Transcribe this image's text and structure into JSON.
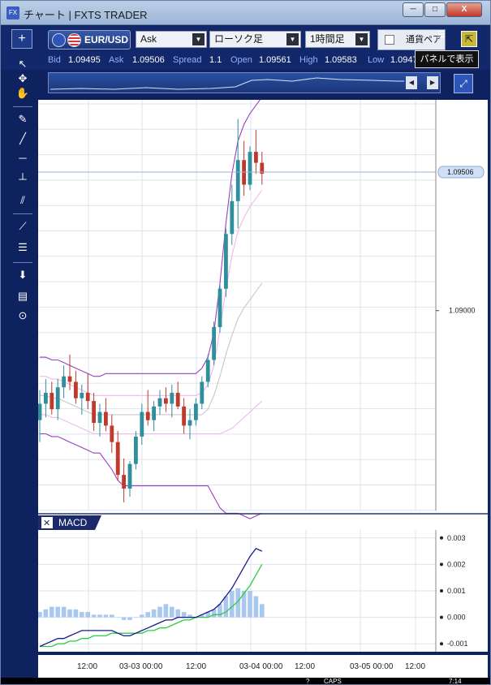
{
  "window": {
    "app_icon": "FX",
    "title": "チャート | FXTS TRADER",
    "min_symbol": "─",
    "max_symbol": "□",
    "close_symbol": "X"
  },
  "toolbar": {
    "add_label": "+",
    "pair": "EUR/USD",
    "price_type": "Ask",
    "chart_type": "ローソク足",
    "timeframe": "1時間足",
    "currency_panel": "通貨ペア",
    "list_icon": "☰",
    "panel_icon": "⇱",
    "tooltip": "パネルで表示",
    "dropdown_arrow": "▼"
  },
  "price_bar": {
    "bid_label": "Bid",
    "bid": "1.09495",
    "ask_label": "Ask",
    "ask": "1.09506",
    "spread_label": "Spread",
    "spread": "1.1",
    "open_label": "Open",
    "open": "1.09561",
    "high_label": "High",
    "high": "1.09583",
    "low_label": "Low",
    "low": "1.0947"
  },
  "navigator": {
    "left_arrow": "◀",
    "right_arrow": "▶",
    "zoom_icon": "⤢"
  },
  "sidebar_icons": [
    "cursor-arrow-icon",
    "cursor-cross-icon",
    "hand-icon",
    "pen-icon",
    "trendline-icon",
    "horizontal-line-icon",
    "vertical-line-icon",
    "channel-icon",
    "fan-icon",
    "fibonacci-icon",
    "download-icon",
    "list-icon",
    "camera-icon"
  ],
  "sidebar_glyphs": [
    "↖",
    "✥",
    "✋",
    "✎",
    "╱",
    "─",
    "┴",
    "⫽",
    "⟋",
    "☰",
    "⬇",
    "▤",
    "⊙"
  ],
  "colors": {
    "bull": "#2f8f9d",
    "bear": "#c0392b",
    "bb_outer": "#9b3fbf",
    "bb_inner": "#f0b8e8",
    "ma": "#c8c8c8",
    "macd": "#1a1a8c",
    "signal": "#2ecc40",
    "hist": "#a9c8f0"
  },
  "chart_data": [
    {
      "type": "candlestick",
      "title": "",
      "price_ylim": [
        1.0827,
        1.0977
      ],
      "y_ticks": [
        "1.09000"
      ],
      "current_price": "1.09506",
      "x_tick_labels": [
        "12:00",
        "03-03 00:00",
        "12:00",
        "03-04 00:00",
        "12:00",
        "03-05 00:00",
        "12:00"
      ],
      "candles": [
        [
          1.086,
          1.0871,
          1.0852,
          1.0866
        ],
        [
          1.0866,
          1.0875,
          1.0861,
          1.087
        ],
        [
          1.087,
          1.0874,
          1.0862,
          1.0864
        ],
        [
          1.0864,
          1.0875,
          1.086,
          1.0872
        ],
        [
          1.0872,
          1.088,
          1.0868,
          1.0876
        ],
        [
          1.0876,
          1.0884,
          1.0871,
          1.0874
        ],
        [
          1.0874,
          1.0878,
          1.0866,
          1.0868
        ],
        [
          1.0868,
          1.0873,
          1.0862,
          1.087
        ],
        [
          1.087,
          1.0877,
          1.0864,
          1.0867
        ],
        [
          1.0867,
          1.087,
          1.0856,
          1.0859
        ],
        [
          1.0859,
          1.0866,
          1.0854,
          1.0863
        ],
        [
          1.0863,
          1.0868,
          1.0856,
          1.0858
        ],
        [
          1.0858,
          1.0862,
          1.0848,
          1.0852
        ],
        [
          1.0852,
          1.0856,
          1.0838,
          1.084
        ],
        [
          1.084,
          1.0846,
          1.083,
          1.0835
        ],
        [
          1.0835,
          1.0845,
          1.0832,
          1.0844
        ],
        [
          1.0844,
          1.0856,
          1.0842,
          1.0854
        ],
        [
          1.0854,
          1.0866,
          1.0851,
          1.0863
        ],
        [
          1.0863,
          1.0871,
          1.0858,
          1.086
        ],
        [
          1.086,
          1.0867,
          1.0856,
          1.0865
        ],
        [
          1.0865,
          1.0871,
          1.0862,
          1.0868
        ],
        [
          1.0868,
          1.0872,
          1.0863,
          1.0866
        ],
        [
          1.0866,
          1.0873,
          1.0861,
          1.087
        ],
        [
          1.087,
          1.0874,
          1.0864,
          1.0865
        ],
        [
          1.0865,
          1.0868,
          1.0855,
          1.0858
        ],
        [
          1.0858,
          1.0864,
          1.0853,
          1.086
        ],
        [
          1.086,
          1.0868,
          1.0858,
          1.0866
        ],
        [
          1.0866,
          1.0876,
          1.0864,
          1.0874
        ],
        [
          1.0874,
          1.0884,
          1.0872,
          1.0882
        ],
        [
          1.0882,
          1.0896,
          1.088,
          1.0894
        ],
        [
          1.0894,
          1.091,
          1.0892,
          1.0908
        ],
        [
          1.0908,
          1.093,
          1.0905,
          1.0928
        ],
        [
          1.0928,
          1.0946,
          1.0924,
          1.094
        ],
        [
          1.094,
          1.097,
          1.093,
          1.0955
        ],
        [
          1.0955,
          1.0962,
          1.0942,
          1.0946
        ],
        [
          1.0946,
          1.096,
          1.0944,
          1.0958
        ],
        [
          1.0958,
          1.0966,
          1.095,
          1.0954
        ],
        [
          1.0954,
          1.0958,
          1.0946,
          1.095
        ]
      ],
      "bollinger": {
        "upper2": [
          1.0883,
          1.0883,
          1.0882,
          1.0882,
          1.0881,
          1.088,
          1.0879,
          1.0878,
          1.0877,
          1.0876,
          1.0876,
          1.0877,
          1.0877,
          1.0877,
          1.0877,
          1.0877,
          1.0877,
          1.0877,
          1.0877,
          1.0877,
          1.0877,
          1.0877,
          1.0877,
          1.0877,
          1.0877,
          1.0877,
          1.0877,
          1.0879,
          1.0883,
          1.0892,
          1.091,
          1.0932,
          1.095,
          1.0962,
          1.0968,
          1.0972,
          1.0975,
          1.0978
        ],
        "upper1": [
          1.0876,
          1.0876,
          1.0875,
          1.0875,
          1.0874,
          1.0873,
          1.0872,
          1.0871,
          1.087,
          1.0869,
          1.0869,
          1.0869,
          1.0869,
          1.0869,
          1.0869,
          1.0869,
          1.0869,
          1.0869,
          1.0869,
          1.0869,
          1.0869,
          1.0869,
          1.0869,
          1.0869,
          1.0869,
          1.0869,
          1.0869,
          1.087,
          1.0873,
          1.088,
          1.0893,
          1.0908,
          1.092,
          1.0929,
          1.0934,
          1.0938,
          1.0941,
          1.0944
        ],
        "mid": [
          1.0869,
          1.0869,
          1.0868,
          1.0868,
          1.0867,
          1.0866,
          1.0865,
          1.0864,
          1.0863,
          1.0862,
          1.0862,
          1.0862,
          1.0862,
          1.0862,
          1.0862,
          1.0862,
          1.0862,
          1.0862,
          1.0862,
          1.0862,
          1.0862,
          1.0862,
          1.0862,
          1.0862,
          1.0862,
          1.0862,
          1.0862,
          1.0862,
          1.0864,
          1.0869,
          1.0876,
          1.0884,
          1.0891,
          1.0897,
          1.0901,
          1.0904,
          1.0907,
          1.091
        ],
        "lower1": [
          1.0862,
          1.0862,
          1.0861,
          1.0861,
          1.086,
          1.0859,
          1.0858,
          1.0857,
          1.0856,
          1.0855,
          1.0855,
          1.0855,
          1.0855,
          1.0855,
          1.0855,
          1.0855,
          1.0855,
          1.0855,
          1.0855,
          1.0855,
          1.0855,
          1.0855,
          1.0855,
          1.0855,
          1.0855,
          1.0855,
          1.0855,
          1.0855,
          1.0855,
          1.0855,
          1.0855,
          1.0856,
          1.0857,
          1.0859,
          1.0861,
          1.0863,
          1.0865,
          1.0867
        ],
        "lower2": [
          1.0855,
          1.0855,
          1.0854,
          1.0854,
          1.0853,
          1.0852,
          1.0851,
          1.085,
          1.0849,
          1.0848,
          1.0848,
          1.0845,
          1.0842,
          1.0838,
          1.0836,
          1.0836,
          1.0836,
          1.0836,
          1.0836,
          1.0836,
          1.0836,
          1.0836,
          1.0836,
          1.0836,
          1.0836,
          1.0836,
          1.0836,
          1.0836,
          1.0836,
          1.0832,
          1.0828,
          1.0826,
          1.0826,
          1.0826,
          1.0825,
          1.0824,
          1.0825,
          1.0826
        ]
      }
    },
    {
      "type": "line",
      "title": "MACD",
      "close_icon": "✕",
      "ylim": [
        -0.0013,
        0.0033
      ],
      "y_ticks": [
        "0.003",
        "0.002",
        "0.001",
        "0.000",
        "-0.001"
      ],
      "macd": [
        -0.0011,
        -0.001,
        -0.0009,
        -0.0008,
        -0.0008,
        -0.0007,
        -0.0006,
        -0.0005,
        -0.0005,
        -0.0005,
        -0.0005,
        -0.0005,
        -0.0005,
        -0.0006,
        -0.0007,
        -0.0007,
        -0.0006,
        -0.0005,
        -0.0004,
        -0.0003,
        -0.0002,
        -0.0001,
        -0.0001,
        0.0,
        0.0,
        0.0,
        0.0,
        0.0001,
        0.0002,
        0.0003,
        0.0005,
        0.0008,
        0.0011,
        0.0015,
        0.0019,
        0.0023,
        0.0026,
        0.0025
      ],
      "signal": [
        -0.0011,
        -0.0011,
        -0.0011,
        -0.001,
        -0.001,
        -0.0009,
        -0.0009,
        -0.0008,
        -0.0008,
        -0.0007,
        -0.0007,
        -0.0007,
        -0.0006,
        -0.0006,
        -0.0006,
        -0.0006,
        -0.0006,
        -0.0006,
        -0.0005,
        -0.0005,
        -0.0004,
        -0.0004,
        -0.0003,
        -0.0002,
        -0.0001,
        -0.0001,
        0.0,
        0.0,
        0.0,
        0.0001,
        0.0001,
        0.0002,
        0.0004,
        0.0006,
        0.0009,
        0.0012,
        0.0016,
        0.002
      ],
      "histogram": [
        0.0002,
        0.0003,
        0.0004,
        0.0004,
        0.0004,
        0.0003,
        0.0003,
        0.0002,
        0.0002,
        0.0001,
        0.0001,
        0.0001,
        0.0001,
        0.0,
        -0.0001,
        -0.0001,
        0.0,
        0.0001,
        0.0002,
        0.0003,
        0.0004,
        0.0005,
        0.0004,
        0.0003,
        0.0002,
        0.0001,
        0.0,
        0.0001,
        0.0002,
        0.0003,
        0.0005,
        0.0008,
        0.001,
        0.0011,
        0.001,
        0.001,
        0.0008,
        0.0005
      ]
    }
  ],
  "taskbar": {
    "caps": "CAPS",
    "clock": "7:14",
    "help": "?"
  }
}
